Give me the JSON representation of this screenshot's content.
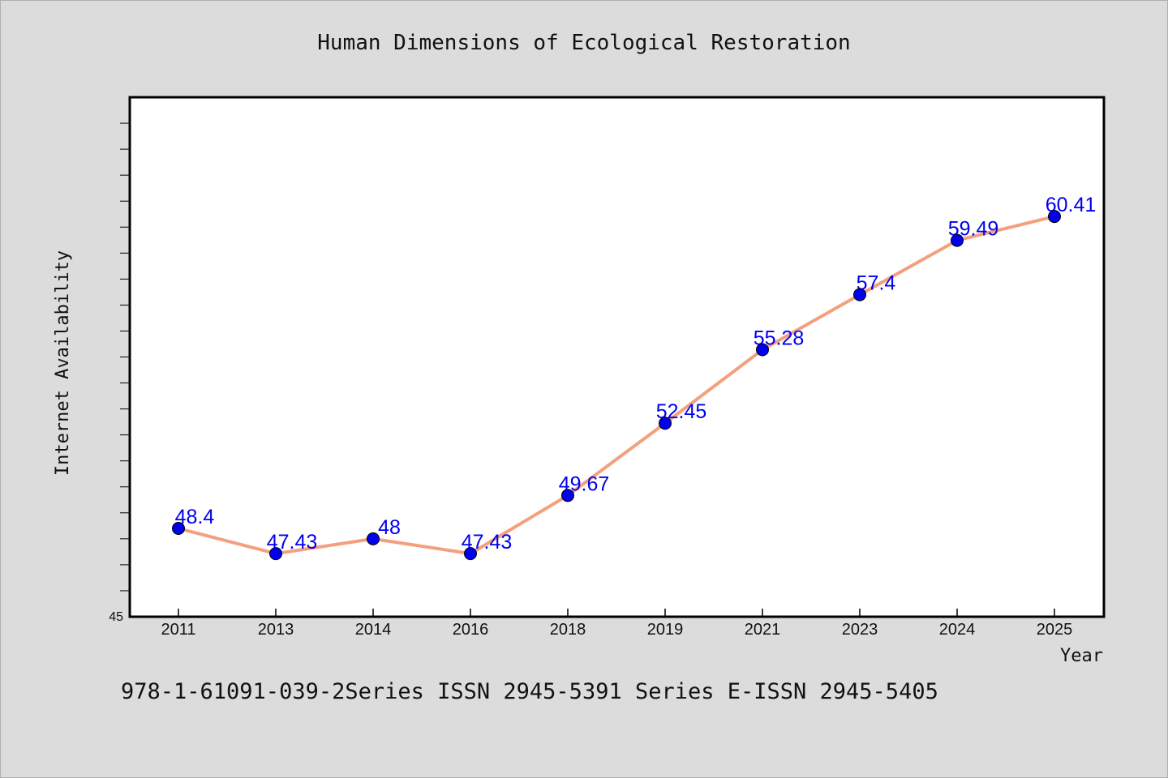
{
  "chart_data": {
    "type": "line",
    "title": "Human Dimensions of Ecological Restoration",
    "xlabel": "Year",
    "ylabel": "Internet Availability",
    "categories": [
      "2011",
      "2013",
      "2014",
      "2016",
      "2018",
      "2019",
      "2021",
      "2023",
      "2024",
      "2025"
    ],
    "series": [
      {
        "values": [
          48.4,
          47.43,
          48,
          47.43,
          49.67,
          52.45,
          55.28,
          57.4,
          59.49,
          60.41
        ],
        "labels": [
          "48.4",
          "47.43",
          "48",
          "47.43",
          "49.67",
          "52.45",
          "55.28",
          "57.4",
          "59.49",
          "60.41"
        ]
      }
    ],
    "ylim": [
      45,
      65
    ],
    "y_tick_labels_shown": [
      "45"
    ],
    "grid": false,
    "colors": {
      "line": "#f4a07e",
      "marker": "#0000ee",
      "data_label": "#0000ee",
      "background": "#dcdcdc",
      "plot_background": "#ffffff"
    }
  },
  "footer": {
    "text": "978-1-61091-039-2Series ISSN 2945-5391 Series E-ISSN 2945-5405"
  }
}
